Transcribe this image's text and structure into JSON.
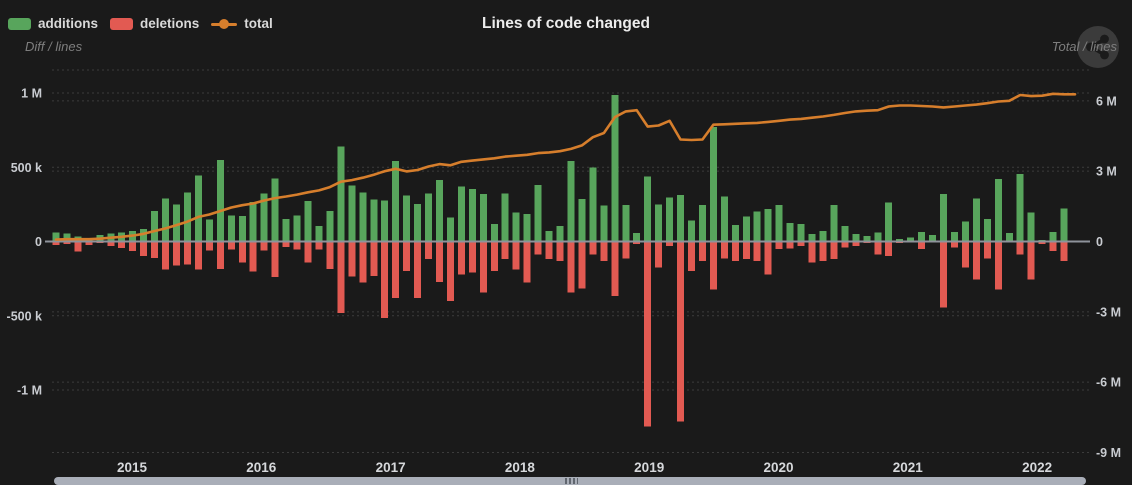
{
  "header": {
    "title": "Lines of code changed",
    "legend": [
      {
        "label": "additions",
        "type": "bar",
        "color": "#58a55c"
      },
      {
        "label": "deletions",
        "type": "bar",
        "color": "#e25a52"
      },
      {
        "label": "total",
        "type": "line",
        "color": "#d67e2c"
      }
    ],
    "menu_icon": "share-nodes-icon"
  },
  "chart_data": {
    "type": "combo-bar-line",
    "title": "Lines of code changed",
    "grid": "dotted horizontal gridlines on dark background",
    "months": [
      "2014-08",
      "2014-09",
      "2014-10",
      "2014-11",
      "2014-12",
      "2015-01",
      "2015-02",
      "2015-03",
      "2015-04",
      "2015-05",
      "2015-06",
      "2015-07",
      "2015-08",
      "2015-09",
      "2015-10",
      "2015-11",
      "2015-12",
      "2016-01",
      "2016-02",
      "2016-03",
      "2016-04",
      "2016-05",
      "2016-06",
      "2016-07",
      "2016-08",
      "2016-09",
      "2016-10",
      "2016-11",
      "2016-12",
      "2017-01",
      "2017-02",
      "2017-03",
      "2017-04",
      "2017-05",
      "2017-06",
      "2017-07",
      "2017-08",
      "2017-09",
      "2017-10",
      "2017-11",
      "2017-12",
      "2018-01",
      "2018-02",
      "2018-03",
      "2018-04",
      "2018-05",
      "2018-06",
      "2018-07",
      "2018-08",
      "2018-09",
      "2018-10",
      "2018-11",
      "2018-12",
      "2019-01",
      "2019-02",
      "2019-03",
      "2019-04",
      "2019-05",
      "2019-06",
      "2019-07",
      "2019-08",
      "2019-09",
      "2019-10",
      "2019-11",
      "2019-12",
      "2020-01",
      "2020-02",
      "2020-03",
      "2020-04",
      "2020-05",
      "2020-06",
      "2020-07",
      "2020-08",
      "2020-09",
      "2020-10",
      "2020-11",
      "2020-12",
      "2021-01",
      "2021-02",
      "2021-03",
      "2021-04",
      "2021-05",
      "2021-06",
      "2021-07",
      "2021-08",
      "2021-09",
      "2021-10",
      "2021-11",
      "2021-12",
      "2022-01",
      "2022-02",
      "2022-03",
      "2022-04",
      "2022-05"
    ],
    "series": [
      {
        "name": "additions",
        "type": "bar",
        "axis": "left",
        "color": "#58a55c",
        "unit": "lines (thousands)",
        "values_k": [
          61,
          54,
          32,
          23,
          43,
          54,
          61,
          70,
          83,
          205,
          288,
          250,
          329,
          446,
          149,
          550,
          176,
          171,
          266,
          324,
          424,
          153,
          176,
          273,
          104,
          205,
          640,
          376,
          331,
          282,
          275,
          541,
          309,
          252,
          324,
          415,
          162,
          372,
          354,
          320,
          117,
          324,
          196,
          185,
          381,
          72,
          106,
          541,
          286,
          500,
          241,
          985,
          246,
          56,
          439,
          248,
          297,
          313,
          140,
          246,
          771,
          304,
          110,
          169,
          201,
          219,
          246,
          124,
          117,
          50,
          72,
          246,
          106,
          50,
          38,
          61,
          264,
          16,
          27,
          65,
          43,
          320,
          65,
          133,
          291,
          151,
          421,
          56,
          455,
          196,
          11,
          65,
          223,
          5
        ]
      },
      {
        "name": "deletions",
        "type": "bar",
        "axis": "left",
        "color": "#e25a52",
        "unit": "lines (thousands)",
        "values_k": [
          -25,
          -18,
          -68,
          -25,
          -11,
          -29,
          -45,
          -63,
          -97,
          -110,
          -189,
          -162,
          -155,
          -189,
          -59,
          -185,
          -54,
          -140,
          -201,
          -59,
          -239,
          -36,
          -54,
          -140,
          -54,
          -185,
          -482,
          -237,
          -277,
          -232,
          -514,
          -379,
          -198,
          -379,
          -119,
          -273,
          -401,
          -221,
          -210,
          -345,
          -198,
          -119,
          -187,
          -277,
          -86,
          -119,
          -131,
          -345,
          -318,
          -86,
          -131,
          -367,
          -115,
          -18,
          -1246,
          -176,
          -30,
          -1212,
          -198,
          -131,
          -322,
          -115,
          -131,
          -119,
          -131,
          -221,
          -52,
          -47,
          -29,
          -142,
          -131,
          -119,
          -40,
          -29,
          -11,
          -86,
          -97,
          -11,
          -7,
          -52,
          -7,
          -446,
          -41,
          -176,
          -255,
          -115,
          -322,
          -7,
          -86,
          -255,
          -18,
          -63,
          -131,
          -5
        ]
      },
      {
        "name": "total",
        "type": "line",
        "axis": "right",
        "color": "#d67e2c",
        "unit": "lines (millions)",
        "values_m": [
          0.08,
          0.1,
          0.1,
          0.1,
          0.12,
          0.16,
          0.2,
          0.25,
          0.33,
          0.45,
          0.56,
          0.7,
          0.85,
          1.05,
          1.15,
          1.3,
          1.45,
          1.55,
          1.62,
          1.75,
          1.85,
          1.92,
          2.0,
          2.1,
          2.18,
          2.32,
          2.55,
          2.62,
          2.72,
          2.85,
          3.0,
          3.1,
          2.99,
          3.05,
          3.2,
          3.3,
          3.25,
          3.4,
          3.45,
          3.5,
          3.55,
          3.62,
          3.66,
          3.7,
          3.77,
          3.8,
          3.85,
          3.95,
          4.1,
          4.45,
          4.63,
          5.3,
          5.55,
          5.6,
          4.9,
          4.95,
          5.15,
          4.35,
          4.33,
          4.35,
          4.98,
          5.0,
          5.02,
          5.04,
          5.06,
          5.1,
          5.15,
          5.2,
          5.23,
          5.28,
          5.33,
          5.4,
          5.48,
          5.55,
          5.58,
          5.6,
          5.76,
          5.8,
          5.8,
          5.78,
          5.76,
          5.72,
          5.76,
          5.8,
          5.84,
          5.9,
          5.97,
          6.0,
          6.25,
          6.2,
          6.22,
          6.3,
          6.28,
          6.28
        ]
      }
    ],
    "left_axis": {
      "label": "Diff / lines",
      "ticks": [
        "1 M",
        "500 k",
        "0",
        "-500 k",
        "-1 M"
      ],
      "tick_values": [
        1000000,
        500000,
        0,
        -500000,
        -1000000
      ],
      "range": [
        -1350000,
        1150000
      ]
    },
    "right_axis": {
      "label": "Total / lines",
      "ticks": [
        "6 M",
        "3 M",
        "0",
        "-3 M",
        "-6 M",
        "-9 M"
      ],
      "tick_values": [
        6000000,
        3000000,
        0,
        -3000000,
        -6000000,
        -9000000
      ],
      "range": [
        -9300000,
        7300000
      ]
    },
    "x_axis": {
      "year_labels": [
        "2015",
        "2016",
        "2017",
        "2018",
        "2019",
        "2020",
        "2021",
        "2022"
      ]
    },
    "colors": {
      "background": "#1a1a1a",
      "gridline": "#3c3c3c",
      "zero_line": "#8e939b",
      "tick_label": "#c9ccd1",
      "title": "#ececec",
      "subtitle": "#7e7e7e",
      "scrollbar_thumb": "#a9aeb8"
    }
  },
  "scrollbar": {
    "state": "spans almost full width",
    "handle": "center-dots"
  }
}
